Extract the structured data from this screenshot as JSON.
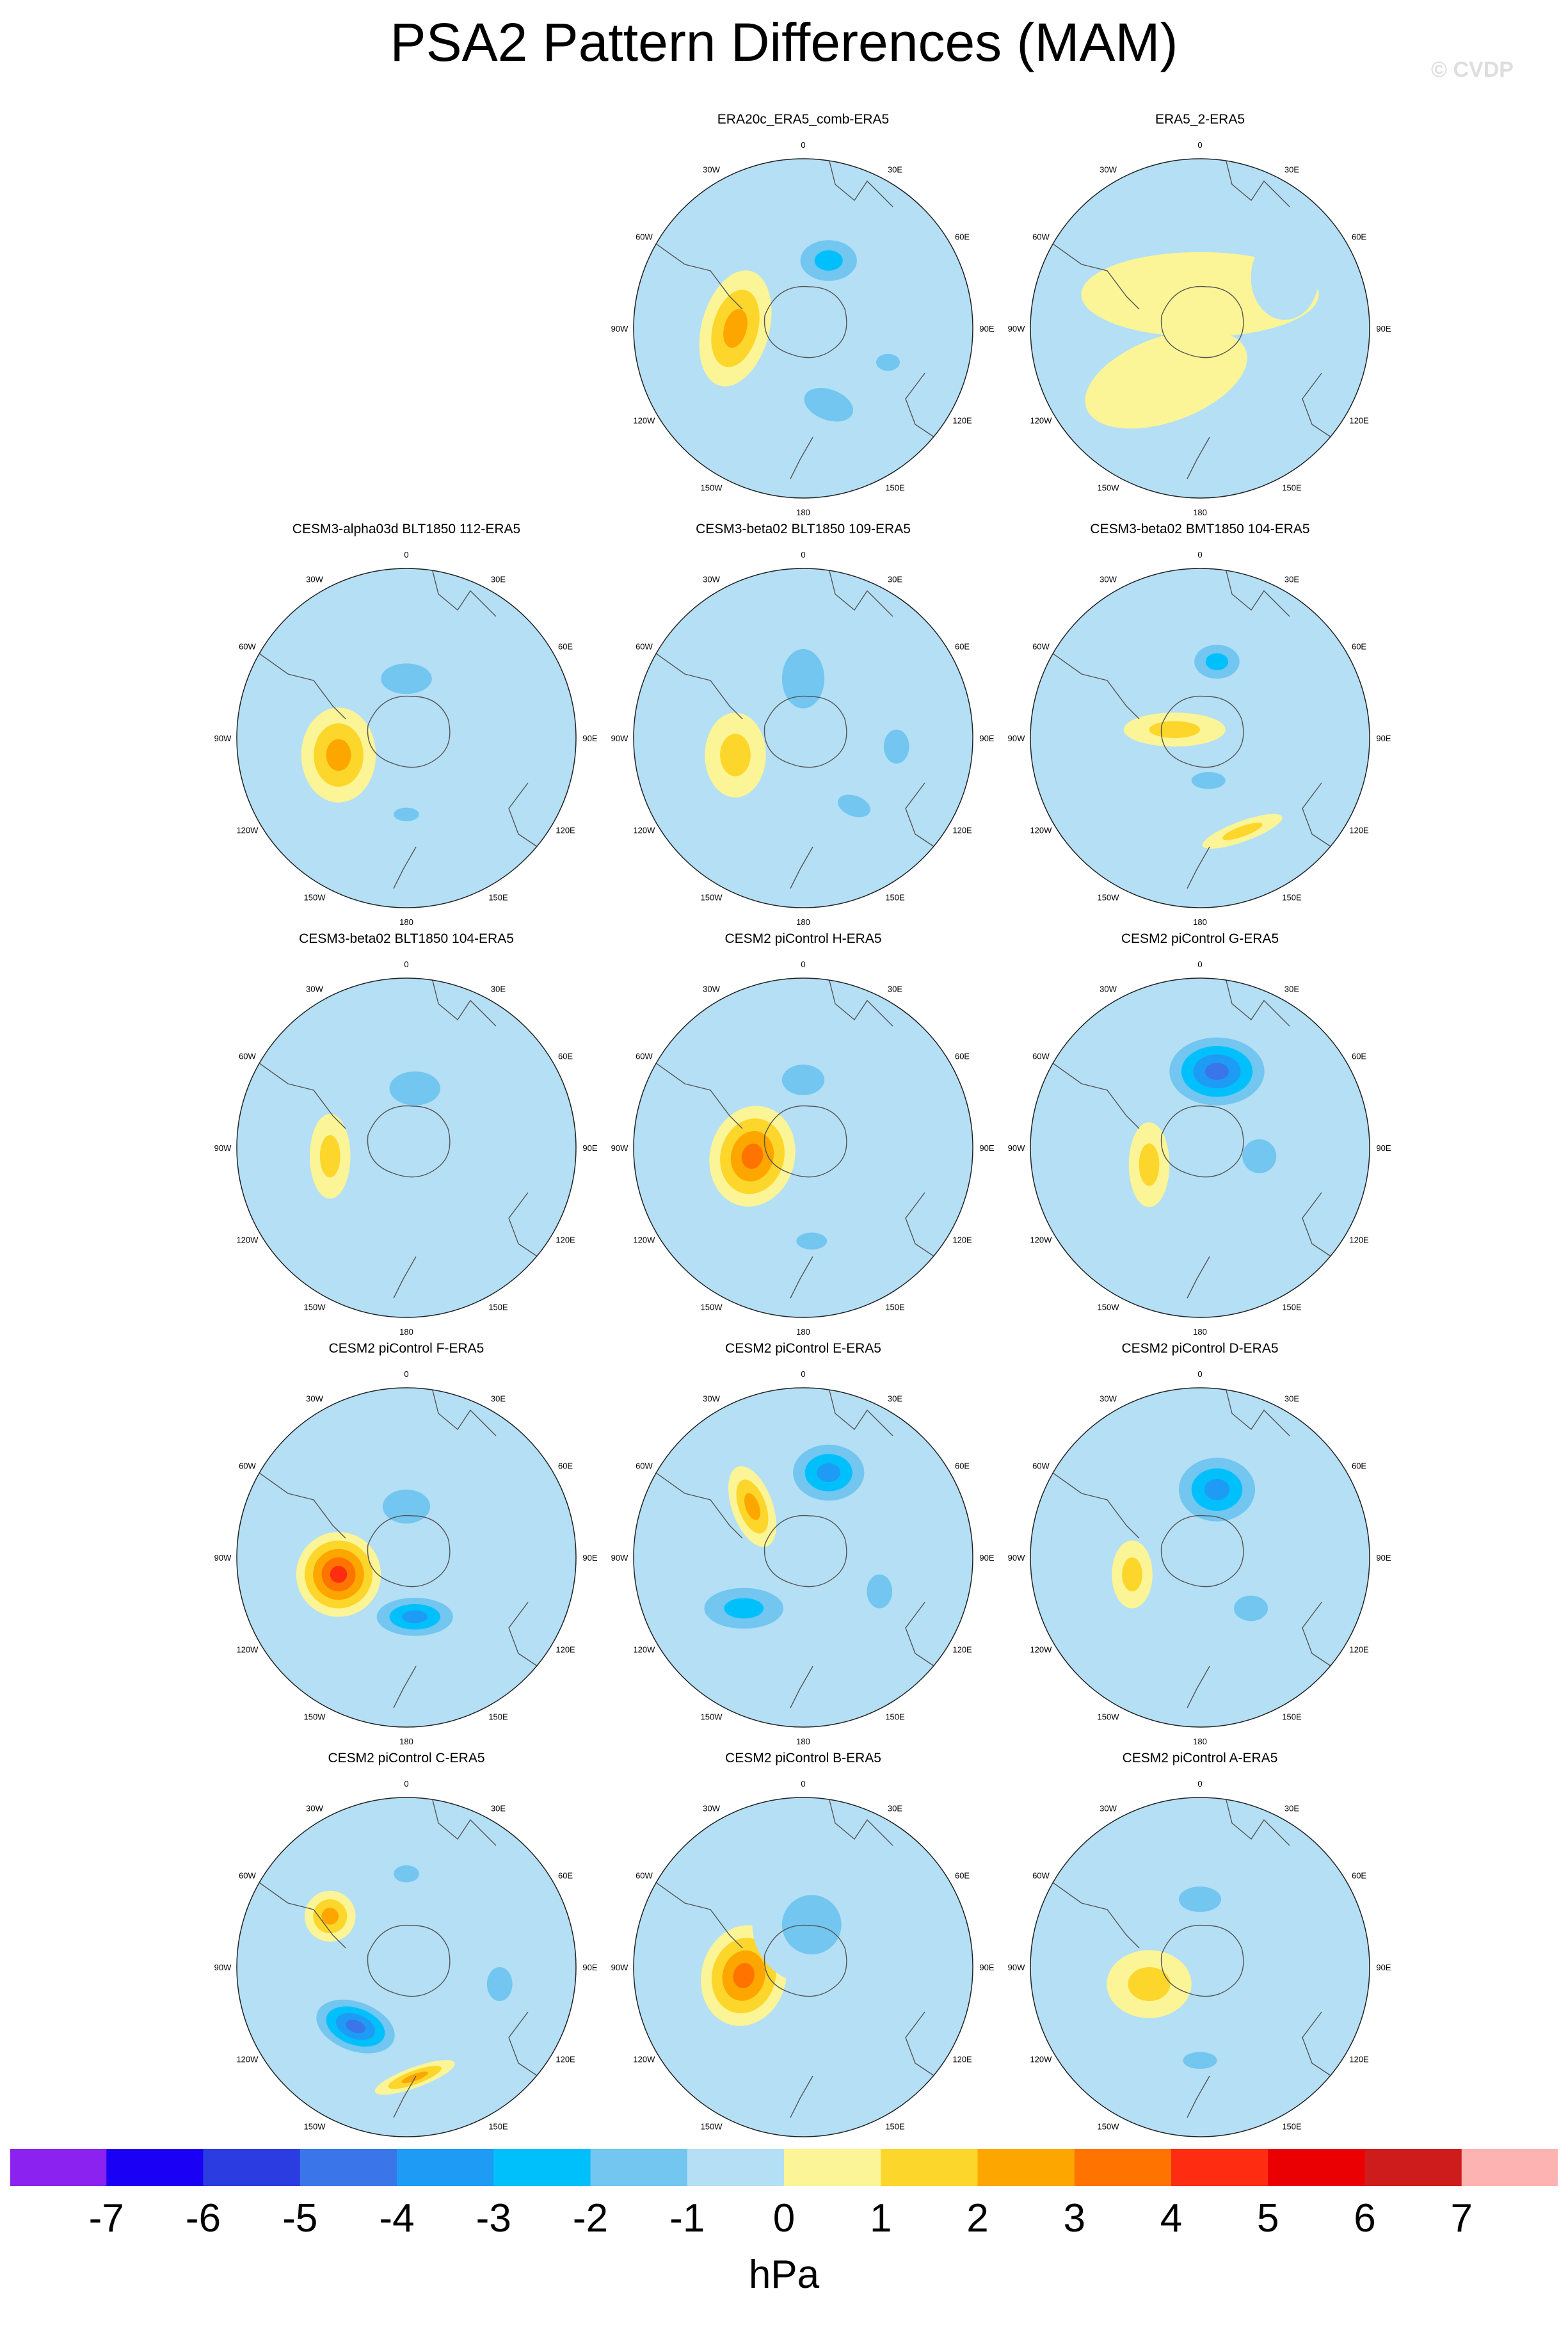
{
  "title": "PSA2 Pattern Differences (MAM)",
  "watermark": "© CVDP",
  "lon_labels": [
    "0",
    "30E",
    "60E",
    "90E",
    "120E",
    "150E",
    "180",
    "150W",
    "120W",
    "90W",
    "60W",
    "30W"
  ],
  "palette": {
    "levels": [
      "-7",
      "-6",
      "-5",
      "-4",
      "-3",
      "-2",
      "-1",
      "0",
      "1",
      "2",
      "3",
      "4",
      "5",
      "6",
      "7"
    ],
    "colors": [
      "#8b22f0",
      "#1a00f5",
      "#2b3de0",
      "#3a75ea",
      "#1e9bf5",
      "#00c0fc",
      "#72c6f0",
      "#b4dff5",
      "#fbf597",
      "#fdd62b",
      "#fda600",
      "#ff7300",
      "#fe2d12",
      "#ea0002",
      "#ce1c1c",
      "#feb3b3"
    ],
    "unit": "hPa"
  },
  "panels": [
    {
      "title": "ERA20c_ERA5_comb-ERA5",
      "blobs": [
        [
          -0.4,
          0.0,
          0.2,
          0.35,
          2.6,
          15
        ],
        [
          0.15,
          -0.4,
          0.25,
          0.18,
          -2.6,
          0
        ],
        [
          0.15,
          0.45,
          0.3,
          0.18,
          -1.1,
          20
        ],
        [
          0.5,
          0.2,
          0.14,
          0.1,
          -1.2,
          0
        ]
      ]
    },
    {
      "title": "ERA5_2-ERA5",
      "blobs": [
        [
          0.0,
          -0.2,
          0.7,
          0.25,
          0.5,
          0
        ],
        [
          -0.2,
          0.3,
          0.5,
          0.25,
          0.6,
          -20
        ],
        [
          0.5,
          -0.3,
          0.2,
          0.25,
          -0.8,
          0
        ]
      ]
    },
    {
      "title": "CESM3-alpha03d BLT1850 112-ERA5",
      "blobs": [
        [
          -0.4,
          0.1,
          0.22,
          0.28,
          2.6,
          0
        ],
        [
          0.0,
          -0.35,
          0.3,
          0.18,
          -1.5,
          0
        ],
        [
          0.0,
          0.45,
          0.15,
          0.08,
          -1.2,
          0
        ]
      ]
    },
    {
      "title": "CESM3-beta02 BLT1850 109-ERA5",
      "blobs": [
        [
          -0.4,
          0.1,
          0.18,
          0.25,
          1.6,
          0
        ],
        [
          0.0,
          -0.35,
          0.25,
          0.35,
          -1.4,
          0
        ],
        [
          0.3,
          0.4,
          0.2,
          0.12,
          -1.3,
          20
        ],
        [
          0.55,
          0.05,
          0.15,
          0.2,
          -1.3,
          0
        ]
      ]
    },
    {
      "title": "CESM3-beta02 BMT1850 104-ERA5",
      "blobs": [
        [
          0.1,
          -0.45,
          0.2,
          0.15,
          -2.7,
          0
        ],
        [
          -0.15,
          -0.05,
          0.3,
          0.1,
          1.6,
          0
        ],
        [
          0.05,
          0.25,
          0.2,
          0.1,
          -1.4,
          0
        ],
        [
          0.25,
          0.55,
          0.25,
          0.06,
          1.7,
          -20
        ]
      ]
    },
    {
      "title": "CESM3-beta02 BLT1850 104-ERA5",
      "blobs": [
        [
          -0.45,
          0.05,
          0.12,
          0.25,
          1.6,
          0
        ],
        [
          0.05,
          -0.35,
          0.3,
          0.2,
          -1.2,
          0
        ]
      ]
    },
    {
      "title": "CESM2 piControl H-ERA5",
      "blobs": [
        [
          -0.3,
          0.05,
          0.25,
          0.3,
          3.2,
          15
        ],
        [
          0.0,
          -0.4,
          0.25,
          0.18,
          -1.6,
          0
        ],
        [
          0.05,
          0.55,
          0.18,
          0.1,
          -1.3,
          0
        ]
      ]
    },
    {
      "title": "CESM2 piControl G-ERA5",
      "blobs": [
        [
          0.1,
          -0.45,
          0.35,
          0.25,
          -4.5,
          0
        ],
        [
          -0.3,
          0.1,
          0.12,
          0.25,
          1.5,
          0
        ],
        [
          0.35,
          0.05,
          0.2,
          0.2,
          -1.3,
          0
        ]
      ]
    },
    {
      "title": "CESM2 piControl F-ERA5",
      "blobs": [
        [
          -0.4,
          0.1,
          0.25,
          0.25,
          4.3,
          0
        ],
        [
          0.05,
          0.35,
          0.3,
          0.15,
          -3.1,
          0
        ],
        [
          0.0,
          -0.3,
          0.28,
          0.2,
          -1.6,
          0
        ]
      ]
    },
    {
      "title": "CESM2 piControl E-ERA5",
      "blobs": [
        [
          0.15,
          -0.5,
          0.28,
          0.22,
          -3.6,
          0
        ],
        [
          -0.35,
          0.3,
          0.35,
          0.18,
          -2.6,
          0
        ],
        [
          -0.3,
          -0.3,
          0.12,
          0.25,
          2.6,
          -20
        ],
        [
          0.45,
          0.2,
          0.15,
          0.2,
          -1.3,
          0
        ]
      ]
    },
    {
      "title": "CESM2 piControl D-ERA5",
      "blobs": [
        [
          0.1,
          -0.4,
          0.3,
          0.25,
          -3.1,
          0
        ],
        [
          -0.4,
          0.1,
          0.12,
          0.2,
          1.6,
          0
        ],
        [
          0.3,
          0.3,
          0.2,
          0.15,
          -1.3,
          0
        ]
      ]
    },
    {
      "title": "CESM2 piControl C-ERA5",
      "blobs": [
        [
          -0.3,
          0.35,
          0.3,
          0.18,
          -4.3,
          20
        ],
        [
          -0.45,
          -0.3,
          0.15,
          0.15,
          2.3,
          0
        ],
        [
          0.0,
          -0.55,
          0.15,
          0.1,
          -1.6,
          0
        ],
        [
          0.55,
          0.1,
          0.15,
          0.2,
          -1.3,
          0
        ],
        [
          0.05,
          0.65,
          0.25,
          0.06,
          2.2,
          -20
        ]
      ]
    },
    {
      "title": "CESM2 piControl B-ERA5",
      "blobs": [
        [
          -0.35,
          0.05,
          0.25,
          0.3,
          3.3,
          15
        ],
        [
          0.05,
          -0.25,
          0.35,
          0.35,
          -1.5,
          0
        ]
      ]
    },
    {
      "title": "CESM2 piControl A-ERA5",
      "blobs": [
        [
          -0.3,
          0.1,
          0.25,
          0.2,
          1.7,
          0
        ],
        [
          0.0,
          -0.4,
          0.25,
          0.15,
          -1.5,
          0
        ],
        [
          0.0,
          0.55,
          0.2,
          0.1,
          -1.3,
          0
        ]
      ]
    }
  ]
}
